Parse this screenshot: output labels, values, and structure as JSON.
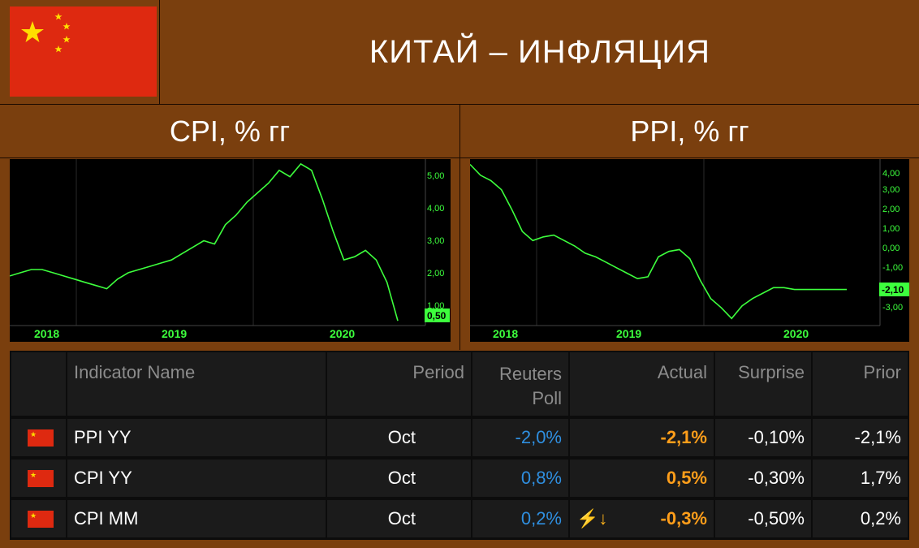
{
  "header": {
    "title": "КИТАЙ – ИНФЛЯЦИЯ"
  },
  "colors": {
    "background": "#7a3f0e",
    "line": "#3dff3d",
    "flag_red": "#de2910",
    "flag_yellow": "#ffde00",
    "poll_blue": "#2f8fe0",
    "actual_orange": "#ff9e1a"
  },
  "chart_data": [
    {
      "type": "line",
      "title": "CPI, % гг",
      "x_tick_labels": [
        "2018",
        "2019",
        "2020"
      ],
      "y_tick_labels": [
        "5,00",
        "4,00",
        "3,00",
        "2,00",
        "1,00"
      ],
      "last_value_label": "0,50",
      "ylim": [
        0.4,
        5.5
      ],
      "x": [
        "2017-10",
        "2017-11",
        "2017-12",
        "2018-01",
        "2018-02",
        "2018-03",
        "2018-04",
        "2018-05",
        "2018-06",
        "2018-07",
        "2018-08",
        "2018-09",
        "2018-10",
        "2018-11",
        "2018-12",
        "2019-01",
        "2019-02",
        "2019-03",
        "2019-04",
        "2019-05",
        "2019-06",
        "2019-07",
        "2019-08",
        "2019-09",
        "2019-10",
        "2019-11",
        "2019-12",
        "2020-01",
        "2020-02",
        "2020-03",
        "2020-04",
        "2020-05",
        "2020-06",
        "2020-07",
        "2020-08",
        "2020-09",
        "2020-10"
      ],
      "values": [
        1.9,
        2.0,
        2.1,
        2.1,
        2.0,
        1.9,
        1.8,
        1.7,
        1.6,
        1.5,
        1.8,
        2.0,
        2.1,
        2.2,
        2.3,
        2.4,
        2.6,
        2.8,
        3.0,
        2.9,
        3.5,
        3.8,
        4.2,
        4.5,
        4.8,
        5.2,
        5.0,
        5.4,
        5.2,
        4.3,
        3.3,
        2.4,
        2.5,
        2.7,
        2.4,
        1.7,
        0.5
      ],
      "grid": false
    },
    {
      "type": "line",
      "title": "PPI, % гг",
      "x_tick_labels": [
        "2018",
        "2019",
        "2020"
      ],
      "y_tick_labels": [
        "4,00",
        "3,00",
        "2,00",
        "1,00",
        "0,00",
        "-1,00",
        "-3,00"
      ],
      "last_value_label": "-2,10",
      "ylim": [
        -4.0,
        5.0
      ],
      "x": [
        "2017-10",
        "2017-11",
        "2017-12",
        "2018-01",
        "2018-02",
        "2018-03",
        "2018-04",
        "2018-05",
        "2018-06",
        "2018-07",
        "2018-08",
        "2018-09",
        "2018-10",
        "2018-11",
        "2018-12",
        "2019-01",
        "2019-02",
        "2019-03",
        "2019-04",
        "2019-05",
        "2019-06",
        "2019-07",
        "2019-08",
        "2019-09",
        "2019-10",
        "2019-11",
        "2019-12",
        "2020-01",
        "2020-02",
        "2020-03",
        "2020-04",
        "2020-05",
        "2020-06",
        "2020-07",
        "2020-08",
        "2020-09",
        "2020-10"
      ],
      "values": [
        4.8,
        4.2,
        3.9,
        3.4,
        2.3,
        1.1,
        0.6,
        0.8,
        0.9,
        0.6,
        0.3,
        -0.1,
        -0.3,
        -0.6,
        -0.9,
        -1.2,
        -1.5,
        -1.4,
        -0.3,
        0.0,
        0.1,
        -0.4,
        -1.6,
        -2.6,
        -3.1,
        -3.7,
        -3.0,
        -2.6,
        -2.3,
        -2.0,
        -2.0,
        -2.1,
        -2.1,
        -2.1,
        -2.1,
        -2.1,
        -2.1
      ],
      "grid": false
    }
  ],
  "table": {
    "headers": {
      "indicator": "Indicator Name",
      "period": "Period",
      "poll_line1": "Reuters",
      "poll_line2": "Poll",
      "actual": "Actual",
      "surprise": "Surprise",
      "prior": "Prior"
    },
    "rows": [
      {
        "indicator": "PPI YY",
        "period": "Oct",
        "poll": "-2,0%",
        "alert": "",
        "actual": "-2,1%",
        "surprise": "-0,10%",
        "prior": "-2,1%"
      },
      {
        "indicator": "CPI YY",
        "period": "Oct",
        "poll": "0,8%",
        "alert": "",
        "actual": "0,5%",
        "surprise": "-0,30%",
        "prior": "1,7%"
      },
      {
        "indicator": "CPI MM",
        "period": "Oct",
        "poll": "0,2%",
        "alert": "⚡↓",
        "actual": "-0,3%",
        "surprise": "-0,50%",
        "prior": "0,2%"
      }
    ]
  }
}
